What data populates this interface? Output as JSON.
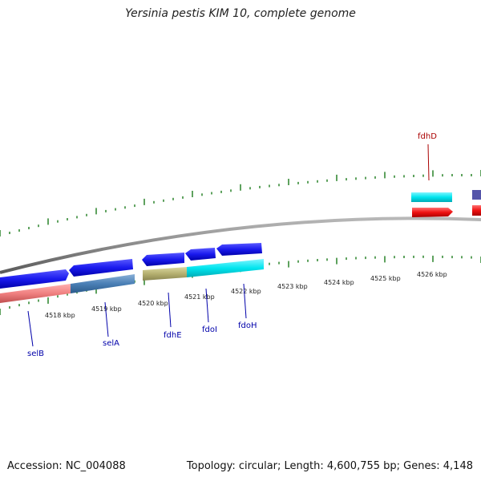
{
  "header": {
    "title": "Yersinia pestis KIM 10, complete genome"
  },
  "footer": {
    "accession": "Accession: NC_004088",
    "topology": "Topology: circular; Length: 4,600,755 bp; Genes: 4,148"
  },
  "kbp_labels": [
    "4518 kbp",
    "4519 kbp",
    "4520 kbp",
    "4521 kbp",
    "4522 kbp",
    "4523 kbp",
    "4524 kbp",
    "4525 kbp",
    "4526 kbp"
  ],
  "gene_labels": [
    {
      "name": "selB",
      "color": "#0000aa"
    },
    {
      "name": "selA",
      "color": "#0000aa"
    },
    {
      "name": "fdhE",
      "color": "#0000aa"
    },
    {
      "name": "fdoI",
      "color": "#0000aa"
    },
    {
      "name": "fdoH",
      "color": "#0000aa"
    },
    {
      "name": "fdhD",
      "color": "#aa0000"
    }
  ],
  "colors": {
    "tick": "#1a7a1a",
    "backbone": "#888888",
    "cds_forward": "#1a1aee",
    "cds_reverse": "#00e5ee",
    "rna_red": "#ee1111",
    "selB": "#f08080",
    "selA": "#4a7fb5",
    "fdhE": "#b5b070",
    "strip_dark": "#5555aa"
  }
}
